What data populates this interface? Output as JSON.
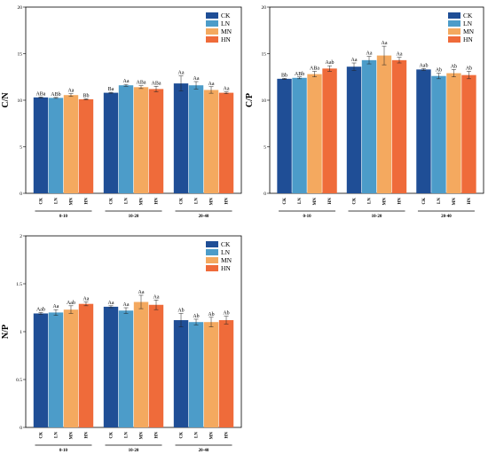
{
  "chart_data": [
    {
      "type": "bar",
      "ylabel": "C/N",
      "ylim": [
        0,
        20
      ],
      "yticks": [
        0,
        5,
        10,
        15,
        20
      ],
      "groups": [
        "0-10",
        "10-20",
        "20-40"
      ],
      "categories": [
        "CK",
        "LN",
        "MN",
        "HN"
      ],
      "series": [
        {
          "group": "0-10",
          "values": [
            10.3,
            10.25,
            10.55,
            10.1
          ],
          "errors": [
            0.05,
            0.05,
            0.15,
            0.05
          ],
          "labels": [
            "ABa",
            "ABb",
            "Aa",
            "Bb"
          ]
        },
        {
          "group": "10-20",
          "values": [
            10.8,
            11.6,
            11.4,
            11.2
          ],
          "errors": [
            0.05,
            0.1,
            0.15,
            0.3
          ],
          "labels": [
            "Ba",
            "Aa",
            "ABa",
            "ABa"
          ]
        },
        {
          "group": "20-40",
          "values": [
            11.8,
            11.6,
            11.1,
            10.8
          ],
          "errors": [
            0.8,
            0.4,
            0.35,
            0.1
          ],
          "labels": [
            "Aa",
            "Aa",
            "Aa",
            "Aa"
          ]
        }
      ],
      "legend": [
        "CK",
        "LN",
        "MN",
        "HN"
      ],
      "legend_position": "top-right"
    },
    {
      "type": "bar",
      "ylabel": "C/P",
      "ylim": [
        0,
        20
      ],
      "yticks": [
        0,
        5,
        10,
        15,
        20
      ],
      "groups": [
        "0-10",
        "10-20",
        "20-40"
      ],
      "categories": [
        "CK",
        "LN",
        "MN",
        "HN"
      ],
      "series": [
        {
          "group": "0-10",
          "values": [
            12.3,
            12.4,
            12.8,
            13.4
          ],
          "errors": [
            0.05,
            0.1,
            0.3,
            0.3
          ],
          "labels": [
            "Bb",
            "ABb",
            "ABa",
            "Aab"
          ]
        },
        {
          "group": "10-20",
          "values": [
            13.6,
            14.3,
            14.8,
            14.3
          ],
          "errors": [
            0.4,
            0.4,
            1.0,
            0.3
          ],
          "labels": [
            "Aa",
            "Aa",
            "Aa",
            "Aa"
          ]
        },
        {
          "group": "20-40",
          "values": [
            13.3,
            12.6,
            12.9,
            12.7
          ],
          "errors": [
            0.1,
            0.3,
            0.4,
            0.4
          ],
          "labels": [
            "Aab",
            "Ab",
            "Ab",
            "Ab"
          ]
        }
      ],
      "legend": [
        "CK",
        "LN",
        "MN",
        "HN"
      ],
      "legend_position": "top-right"
    },
    {
      "type": "bar",
      "ylabel": "N/P",
      "ylim": [
        0,
        2.0
      ],
      "yticks": [
        0.0,
        0.5,
        1.0,
        1.5,
        2.0
      ],
      "groups": [
        "0-10",
        "10-20",
        "20-40"
      ],
      "categories": [
        "CK",
        "LN",
        "MN",
        "HN"
      ],
      "series": [
        {
          "group": "0-10",
          "values": [
            1.19,
            1.2,
            1.23,
            1.29
          ],
          "errors": [
            0.01,
            0.03,
            0.04,
            0.02
          ],
          "labels": [
            "Aab",
            "Aa",
            "Aab",
            "Aa"
          ]
        },
        {
          "group": "10-20",
          "values": [
            1.26,
            1.22,
            1.31,
            1.28
          ],
          "errors": [
            0.01,
            0.03,
            0.07,
            0.05
          ],
          "labels": [
            "Aa",
            "Aa",
            "Aa",
            "Aa"
          ]
        },
        {
          "group": "20-40",
          "values": [
            1.12,
            1.1,
            1.1,
            1.12
          ],
          "errors": [
            0.07,
            0.03,
            0.05,
            0.04
          ],
          "labels": [
            "Ab",
            "Ab",
            "Ab",
            "Ab"
          ]
        }
      ],
      "legend": [
        "CK",
        "LN",
        "MN",
        "HN"
      ],
      "legend_position": "top-right"
    }
  ],
  "colors": {
    "CK": "#1f4e96",
    "LN": "#4c9cc9",
    "MN": "#f4a95f",
    "HN": "#ef6b3a"
  }
}
